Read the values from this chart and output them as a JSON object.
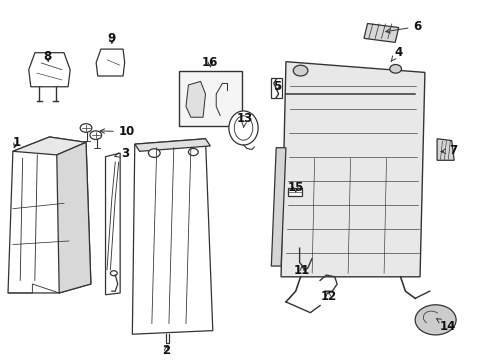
{
  "background_color": "#ffffff",
  "fig_width": 4.89,
  "fig_height": 3.6,
  "dpi": 100,
  "line_color": "#333333",
  "text_color": "#111111",
  "font_size": 8.5,
  "labels": {
    "1": [
      0.035,
      0.575,
      0.055,
      0.595
    ],
    "2": [
      0.305,
      0.045,
      0.305,
      0.025
    ],
    "3": [
      0.255,
      0.545,
      0.26,
      0.565
    ],
    "4": [
      0.785,
      0.885,
      0.8,
      0.9
    ],
    "5": [
      0.565,
      0.76,
      0.57,
      0.78
    ],
    "6": [
      0.845,
      0.935,
      0.86,
      0.955
    ],
    "7": [
      0.91,
      0.585,
      0.925,
      0.6
    ],
    "8": [
      0.13,
      0.825,
      0.115,
      0.84
    ],
    "9": [
      0.235,
      0.88,
      0.235,
      0.9
    ],
    "10": [
      0.21,
      0.605,
      0.235,
      0.61
    ],
    "11": [
      0.625,
      0.275,
      0.625,
      0.255
    ],
    "12": [
      0.66,
      0.195,
      0.66,
      0.17
    ],
    "13": [
      0.5,
      0.65,
      0.495,
      0.67
    ],
    "14": [
      0.895,
      0.125,
      0.91,
      0.105
    ],
    "15": [
      0.6,
      0.47,
      0.605,
      0.49
    ],
    "16": [
      0.425,
      0.8,
      0.425,
      0.825
    ]
  }
}
